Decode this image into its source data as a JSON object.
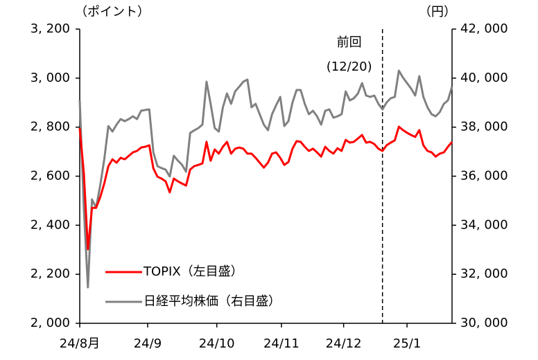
{
  "chart_data": {
    "type": "line",
    "left_axis_label": "（ポイント）",
    "right_axis_label": "（円）",
    "x_labels": [
      "24/8月",
      "24/9",
      "24/10",
      "24/11",
      "24/12",
      "25/1"
    ],
    "annotation": [
      "前回",
      "(12/20)"
    ],
    "series": [
      {
        "name": "TOPIX（左目盛）",
        "color": "#ff0000",
        "axis": "y",
        "values": [
          2796,
          2613,
          2302,
          2471,
          2471,
          2514,
          2570,
          2641,
          2669,
          2655,
          2675,
          2669,
          2683,
          2697,
          2703,
          2717,
          2720,
          2726,
          2632,
          2598,
          2590,
          2579,
          2534,
          2590,
          2579,
          2570,
          2562,
          2627,
          2641,
          2646,
          2652,
          2740,
          2663,
          2709,
          2692,
          2720,
          2740,
          2692,
          2712,
          2717,
          2712,
          2692,
          2692,
          2675,
          2655,
          2635,
          2655,
          2692,
          2697,
          2675,
          2646,
          2658,
          2712,
          2743,
          2740,
          2720,
          2703,
          2712,
          2697,
          2680,
          2720,
          2703,
          2692,
          2714,
          2703,
          2748,
          2737,
          2740,
          2754,
          2768,
          2737,
          2740,
          2731,
          2712,
          2703,
          2726,
          2737,
          2746,
          2802,
          2788,
          2777,
          2768,
          2760,
          2788,
          2726,
          2703,
          2697,
          2680,
          2692,
          2697,
          2720,
          2740
        ]
      },
      {
        "name": "日経平均株価（右目盛）",
        "color": "#808080",
        "axis": "y2",
        "values": [
          39091,
          34714,
          31467,
          35053,
          34714,
          35618,
          36691,
          38044,
          37820,
          38103,
          38329,
          38244,
          38329,
          38442,
          38329,
          38668,
          38700,
          38724,
          36973,
          36409,
          36330,
          36267,
          35985,
          36832,
          36635,
          36465,
          36183,
          37764,
          37870,
          37962,
          38103,
          39854,
          38950,
          37962,
          37820,
          38809,
          39374,
          38950,
          39459,
          39650,
          39854,
          39938,
          38809,
          38950,
          38527,
          38103,
          37877,
          38527,
          38894,
          39233,
          38044,
          38244,
          39007,
          39515,
          39515,
          38950,
          38527,
          38668,
          38442,
          38103,
          38668,
          38724,
          38385,
          38442,
          38527,
          39459,
          39091,
          39176,
          39374,
          39797,
          39289,
          39233,
          39289,
          38950,
          38724,
          39007,
          39176,
          39233,
          40306,
          40023,
          39797,
          39572,
          39289,
          40080,
          39233,
          38809,
          38527,
          38442,
          38611,
          38950,
          39091,
          39656
        ]
      }
    ],
    "ylim": [
      2000,
      3200
    ],
    "yticks": [
      {
        "value": 2000,
        "label": "2, 000"
      },
      {
        "value": 2200,
        "label": "2, 200"
      },
      {
        "value": 2400,
        "label": "2, 400"
      },
      {
        "value": 2600,
        "label": "2, 600"
      },
      {
        "value": 2800,
        "label": "2, 800"
      },
      {
        "value": 3000,
        "label": "3, 000"
      },
      {
        "value": 3200,
        "label": "3, 200"
      }
    ],
    "y2lim": [
      30000,
      42000
    ],
    "y2ticks": [
      {
        "value": 30000,
        "label": "30, 000"
      },
      {
        "value": 32000,
        "label": "32, 000"
      },
      {
        "value": 34000,
        "label": "34, 000"
      },
      {
        "value": 36000,
        "label": "36, 000"
      },
      {
        "value": 38000,
        "label": "38, 000"
      },
      {
        "value": 40000,
        "label": "40, 000"
      },
      {
        "value": 42000,
        "label": "42, 000"
      }
    ],
    "grid": false,
    "legend": "lower-left"
  }
}
